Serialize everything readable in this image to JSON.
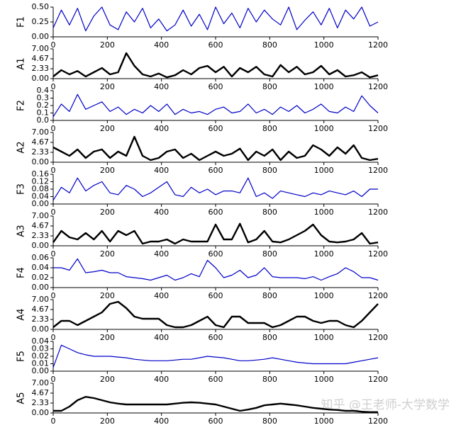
{
  "chart_data": [
    {
      "type": "line",
      "ylabel": "F1",
      "color": "#0000c8",
      "xlim": [
        0,
        1200
      ],
      "xticks": [
        0,
        200,
        400,
        600,
        800,
        1000,
        1200
      ],
      "ylim": [
        0,
        0.5
      ],
      "yticks": [
        {
          "value": 0,
          "label": "0.00"
        },
        0.25,
        {
          "value": 0.5,
          "label": "0.50"
        }
      ],
      "x": [
        0,
        30,
        60,
        90,
        120,
        150,
        180,
        210,
        240,
        270,
        300,
        330,
        360,
        390,
        420,
        450,
        480,
        510,
        540,
        570,
        600,
        630,
        660,
        690,
        720,
        750,
        780,
        810,
        840,
        870,
        900,
        930,
        960,
        990,
        1020,
        1050,
        1080,
        1110,
        1140,
        1170,
        1200
      ],
      "values": [
        0.15,
        0.45,
        0.2,
        0.48,
        0.1,
        0.35,
        0.5,
        0.2,
        0.12,
        0.42,
        0.25,
        0.48,
        0.15,
        0.3,
        0.1,
        0.2,
        0.45,
        0.18,
        0.38,
        0.12,
        0.5,
        0.22,
        0.4,
        0.15,
        0.48,
        0.25,
        0.45,
        0.3,
        0.2,
        0.5,
        0.12,
        0.28,
        0.42,
        0.2,
        0.48,
        0.15,
        0.45,
        0.3,
        0.5,
        0.18,
        0.25
      ]
    },
    {
      "type": "line",
      "ylabel": "A1",
      "color": "#000000",
      "xlim": [
        0,
        1200
      ],
      "xticks": [
        0,
        200,
        400,
        600,
        800,
        1000,
        1200
      ],
      "ylim": [
        0,
        7
      ],
      "yticks": [
        {
          "value": 0,
          "label": "0.00"
        },
        2.33,
        4.67,
        {
          "value": 7,
          "label": "7.00"
        }
      ],
      "x": [
        0,
        30,
        60,
        90,
        120,
        150,
        180,
        210,
        240,
        270,
        300,
        330,
        360,
        390,
        420,
        450,
        480,
        510,
        540,
        570,
        600,
        630,
        660,
        690,
        720,
        750,
        780,
        810,
        840,
        870,
        900,
        930,
        960,
        990,
        1020,
        1050,
        1080,
        1110,
        1140,
        1170,
        1200
      ],
      "values": [
        0.5,
        2,
        1,
        1.8,
        0.5,
        1.5,
        2.5,
        1,
        1.5,
        6,
        3,
        1,
        0.5,
        1.2,
        0.3,
        0.8,
        2,
        1,
        2.5,
        3,
        1.5,
        2.8,
        0.5,
        2.5,
        1.5,
        2.8,
        1,
        0.5,
        3.2,
        1.5,
        2.8,
        1,
        1.5,
        3,
        1,
        2,
        0.5,
        0.8,
        1.5,
        0.3,
        0.8
      ]
    },
    {
      "type": "line",
      "ylabel": "F2",
      "color": "#0000c8",
      "xlim": [
        0,
        1200
      ],
      "xticks": [
        0,
        200,
        400,
        600,
        800,
        1000,
        1200
      ],
      "ylim": [
        0,
        0.4
      ],
      "yticks": [
        {
          "value": 0,
          "label": "0.0"
        },
        0.1,
        0.2,
        0.3,
        0.4
      ],
      "x": [
        0,
        30,
        60,
        90,
        120,
        150,
        180,
        210,
        240,
        270,
        300,
        330,
        360,
        390,
        420,
        450,
        480,
        510,
        540,
        570,
        600,
        630,
        660,
        690,
        720,
        750,
        780,
        810,
        840,
        870,
        900,
        930,
        960,
        990,
        1020,
        1050,
        1080,
        1110,
        1140,
        1170,
        1200
      ],
      "values": [
        0.05,
        0.22,
        0.12,
        0.35,
        0.15,
        0.2,
        0.25,
        0.12,
        0.18,
        0.08,
        0.15,
        0.1,
        0.2,
        0.12,
        0.22,
        0.08,
        0.15,
        0.1,
        0.12,
        0.08,
        0.15,
        0.18,
        0.1,
        0.12,
        0.22,
        0.1,
        0.15,
        0.08,
        0.18,
        0.12,
        0.2,
        0.1,
        0.15,
        0.22,
        0.12,
        0.1,
        0.18,
        0.12,
        0.33,
        0.2,
        0.1
      ]
    },
    {
      "type": "line",
      "ylabel": "A2",
      "color": "#000000",
      "xlim": [
        0,
        1200
      ],
      "xticks": [
        0,
        200,
        400,
        600,
        800,
        1000,
        1200
      ],
      "ylim": [
        0,
        7
      ],
      "yticks": [
        {
          "value": 0,
          "label": "0.00"
        },
        2.33,
        4.67,
        {
          "value": 7,
          "label": "7.00"
        }
      ],
      "x": [
        0,
        30,
        60,
        90,
        120,
        150,
        180,
        210,
        240,
        270,
        300,
        330,
        360,
        390,
        420,
        450,
        480,
        510,
        540,
        570,
        600,
        630,
        660,
        690,
        720,
        750,
        780,
        810,
        840,
        870,
        900,
        930,
        960,
        990,
        1020,
        1050,
        1080,
        1110,
        1140,
        1170,
        1200
      ],
      "values": [
        3.5,
        2.5,
        1.5,
        3,
        1,
        2.5,
        3,
        1,
        2.5,
        1.5,
        6,
        1.5,
        0.5,
        1,
        2.5,
        3,
        1,
        2,
        0.5,
        1.5,
        2.5,
        1.5,
        2,
        3.2,
        0.5,
        2.5,
        1.5,
        3,
        0.5,
        2.5,
        1,
        1.5,
        4,
        3,
        1.5,
        3.5,
        2,
        4,
        1,
        0.5,
        0.8
      ]
    },
    {
      "type": "line",
      "ylabel": "F3",
      "color": "#0000c8",
      "xlim": [
        0,
        1200
      ],
      "xticks": [
        0,
        200,
        400,
        600,
        800,
        1000,
        1200
      ],
      "ylim": [
        0,
        0.16
      ],
      "yticks": [
        {
          "value": 0,
          "label": "0.00"
        },
        0.04,
        0.08,
        0.12,
        0.16
      ],
      "x": [
        0,
        30,
        60,
        90,
        120,
        150,
        180,
        210,
        240,
        270,
        300,
        330,
        360,
        390,
        420,
        450,
        480,
        510,
        540,
        570,
        600,
        630,
        660,
        690,
        720,
        750,
        780,
        810,
        840,
        870,
        900,
        930,
        960,
        990,
        1020,
        1050,
        1080,
        1110,
        1140,
        1170,
        1200
      ],
      "values": [
        0.02,
        0.09,
        0.06,
        0.14,
        0.07,
        0.1,
        0.12,
        0.06,
        0.05,
        0.1,
        0.08,
        0.04,
        0.06,
        0.09,
        0.12,
        0.05,
        0.04,
        0.09,
        0.06,
        0.08,
        0.05,
        0.07,
        0.07,
        0.06,
        0.14,
        0.04,
        0.06,
        0.03,
        0.07,
        0.06,
        0.05,
        0.04,
        0.06,
        0.05,
        0.07,
        0.06,
        0.05,
        0.07,
        0.04,
        0.08,
        0.08
      ]
    },
    {
      "type": "line",
      "ylabel": "A3",
      "color": "#000000",
      "xlim": [
        0,
        1200
      ],
      "xticks": [
        0,
        200,
        400,
        600,
        800,
        1000,
        1200
      ],
      "ylim": [
        0,
        7
      ],
      "yticks": [
        {
          "value": 0,
          "label": "0.00"
        },
        2.33,
        4.67,
        {
          "value": 7,
          "label": "7.00"
        }
      ],
      "x": [
        0,
        30,
        60,
        90,
        120,
        150,
        180,
        210,
        240,
        270,
        300,
        330,
        360,
        390,
        420,
        450,
        480,
        510,
        540,
        570,
        600,
        630,
        660,
        690,
        720,
        750,
        780,
        810,
        840,
        870,
        900,
        930,
        960,
        990,
        1020,
        1050,
        1080,
        1110,
        1140,
        1170,
        1200
      ],
      "values": [
        0.8,
        3.5,
        2,
        1.5,
        3,
        1.5,
        3.5,
        1,
        3.5,
        2.5,
        3.5,
        0.5,
        1,
        1,
        1.5,
        0.5,
        1.5,
        1,
        1,
        1,
        5,
        1.5,
        1.5,
        5.2,
        0.8,
        1.5,
        3.5,
        1,
        0.8,
        1.5,
        2.5,
        3.5,
        5,
        2.5,
        1,
        0.8,
        1,
        1.5,
        3,
        0.5,
        0.8
      ]
    },
    {
      "type": "line",
      "ylabel": "F4",
      "color": "#0000c8",
      "xlim": [
        0,
        1200
      ],
      "xticks": [
        0,
        200,
        400,
        600,
        800,
        1000,
        1200
      ],
      "ylim": [
        0,
        0.06
      ],
      "yticks": [
        {
          "value": 0,
          "label": "0.00"
        },
        0.02,
        0.04,
        0.06
      ],
      "x": [
        0,
        30,
        60,
        90,
        120,
        150,
        180,
        210,
        240,
        270,
        300,
        330,
        360,
        390,
        420,
        450,
        480,
        510,
        540,
        570,
        600,
        630,
        660,
        690,
        720,
        750,
        780,
        810,
        840,
        870,
        900,
        930,
        960,
        990,
        1020,
        1050,
        1080,
        1110,
        1140,
        1170,
        1200
      ],
      "values": [
        0.04,
        0.04,
        0.035,
        0.058,
        0.03,
        0.032,
        0.035,
        0.03,
        0.03,
        0.022,
        0.02,
        0.018,
        0.015,
        0.02,
        0.025,
        0.015,
        0.02,
        0.028,
        0.022,
        0.055,
        0.04,
        0.02,
        0.025,
        0.035,
        0.02,
        0.025,
        0.04,
        0.022,
        0.02,
        0.02,
        0.02,
        0.018,
        0.022,
        0.015,
        0.022,
        0.028,
        0.04,
        0.032,
        0.02,
        0.02,
        0.015
      ]
    },
    {
      "type": "line",
      "ylabel": "A4",
      "color": "#000000",
      "xlim": [
        0,
        1200
      ],
      "xticks": [
        0,
        200,
        400,
        600,
        800,
        1000,
        1200
      ],
      "ylim": [
        0,
        7
      ],
      "yticks": [
        {
          "value": 0,
          "label": "0.00"
        },
        2.33,
        4.67,
        {
          "value": 7,
          "label": "7.00"
        }
      ],
      "x": [
        0,
        30,
        60,
        90,
        120,
        150,
        180,
        210,
        240,
        270,
        300,
        330,
        360,
        390,
        420,
        450,
        480,
        510,
        540,
        570,
        600,
        630,
        660,
        690,
        720,
        750,
        780,
        810,
        840,
        870,
        900,
        930,
        960,
        990,
        1020,
        1050,
        1080,
        1110,
        1140,
        1170,
        1200
      ],
      "values": [
        0.5,
        2,
        2,
        1,
        2,
        3,
        4,
        6,
        6.5,
        5,
        3,
        2.5,
        2.5,
        2.5,
        1,
        0.5,
        0.5,
        1,
        2,
        3,
        1,
        0.5,
        3,
        3,
        1.5,
        1.5,
        1.5,
        0.5,
        1,
        2,
        3,
        3,
        2,
        1.5,
        2,
        2,
        1,
        0.5,
        2,
        4,
        6
      ]
    },
    {
      "type": "line",
      "ylabel": "F5",
      "color": "#0000c8",
      "xlim": [
        0,
        1200
      ],
      "xticks": [
        0,
        200,
        400,
        600,
        800,
        1000,
        1200
      ],
      "ylim": [
        0,
        0.04
      ],
      "yticks": [
        {
          "value": 0,
          "label": "0.00"
        },
        0.01,
        0.02,
        0.03,
        0.04
      ],
      "x": [
        0,
        30,
        60,
        90,
        120,
        150,
        180,
        210,
        240,
        270,
        300,
        330,
        360,
        390,
        420,
        450,
        480,
        510,
        540,
        570,
        600,
        630,
        660,
        690,
        720,
        750,
        780,
        810,
        840,
        870,
        900,
        930,
        960,
        990,
        1020,
        1050,
        1080,
        1110,
        1140,
        1170,
        1200
      ],
      "values": [
        0.005,
        0.035,
        0.03,
        0.025,
        0.022,
        0.02,
        0.02,
        0.02,
        0.019,
        0.018,
        0.016,
        0.015,
        0.014,
        0.014,
        0.014,
        0.015,
        0.016,
        0.016,
        0.018,
        0.02,
        0.019,
        0.018,
        0.016,
        0.014,
        0.014,
        0.015,
        0.016,
        0.018,
        0.016,
        0.014,
        0.012,
        0.011,
        0.01,
        0.01,
        0.01,
        0.01,
        0.01,
        0.012,
        0.014,
        0.016,
        0.018
      ]
    },
    {
      "type": "line",
      "ylabel": "A5",
      "color": "#000000",
      "xlim": [
        0,
        1200
      ],
      "xticks": [
        0,
        200,
        400,
        600,
        800,
        1000,
        1200
      ],
      "ylim": [
        0,
        7
      ],
      "yticks": [
        {
          "value": 0,
          "label": "0.00"
        },
        2.33,
        4.67,
        {
          "value": 7,
          "label": "7.00"
        }
      ],
      "x": [
        0,
        30,
        60,
        90,
        120,
        150,
        180,
        210,
        240,
        270,
        300,
        330,
        360,
        390,
        420,
        450,
        480,
        510,
        540,
        570,
        600,
        630,
        660,
        690,
        720,
        750,
        780,
        810,
        840,
        870,
        900,
        930,
        960,
        990,
        1020,
        1050,
        1080,
        1110,
        1140,
        1170,
        1200
      ],
      "values": [
        0.5,
        0.5,
        1.5,
        3,
        3.8,
        3.5,
        3,
        2.5,
        2.2,
        2,
        2,
        2,
        2,
        2,
        2,
        2.2,
        2.4,
        2.5,
        2.4,
        2.2,
        2,
        1.5,
        1,
        0.5,
        0.8,
        1.2,
        1.8,
        2,
        2.2,
        2,
        1.8,
        1.5,
        1.2,
        1,
        0.8,
        0.7,
        0.5,
        0.5,
        0.3,
        0.2,
        0.2
      ]
    }
  ],
  "watermark": "知乎 @王老师-大学数学"
}
